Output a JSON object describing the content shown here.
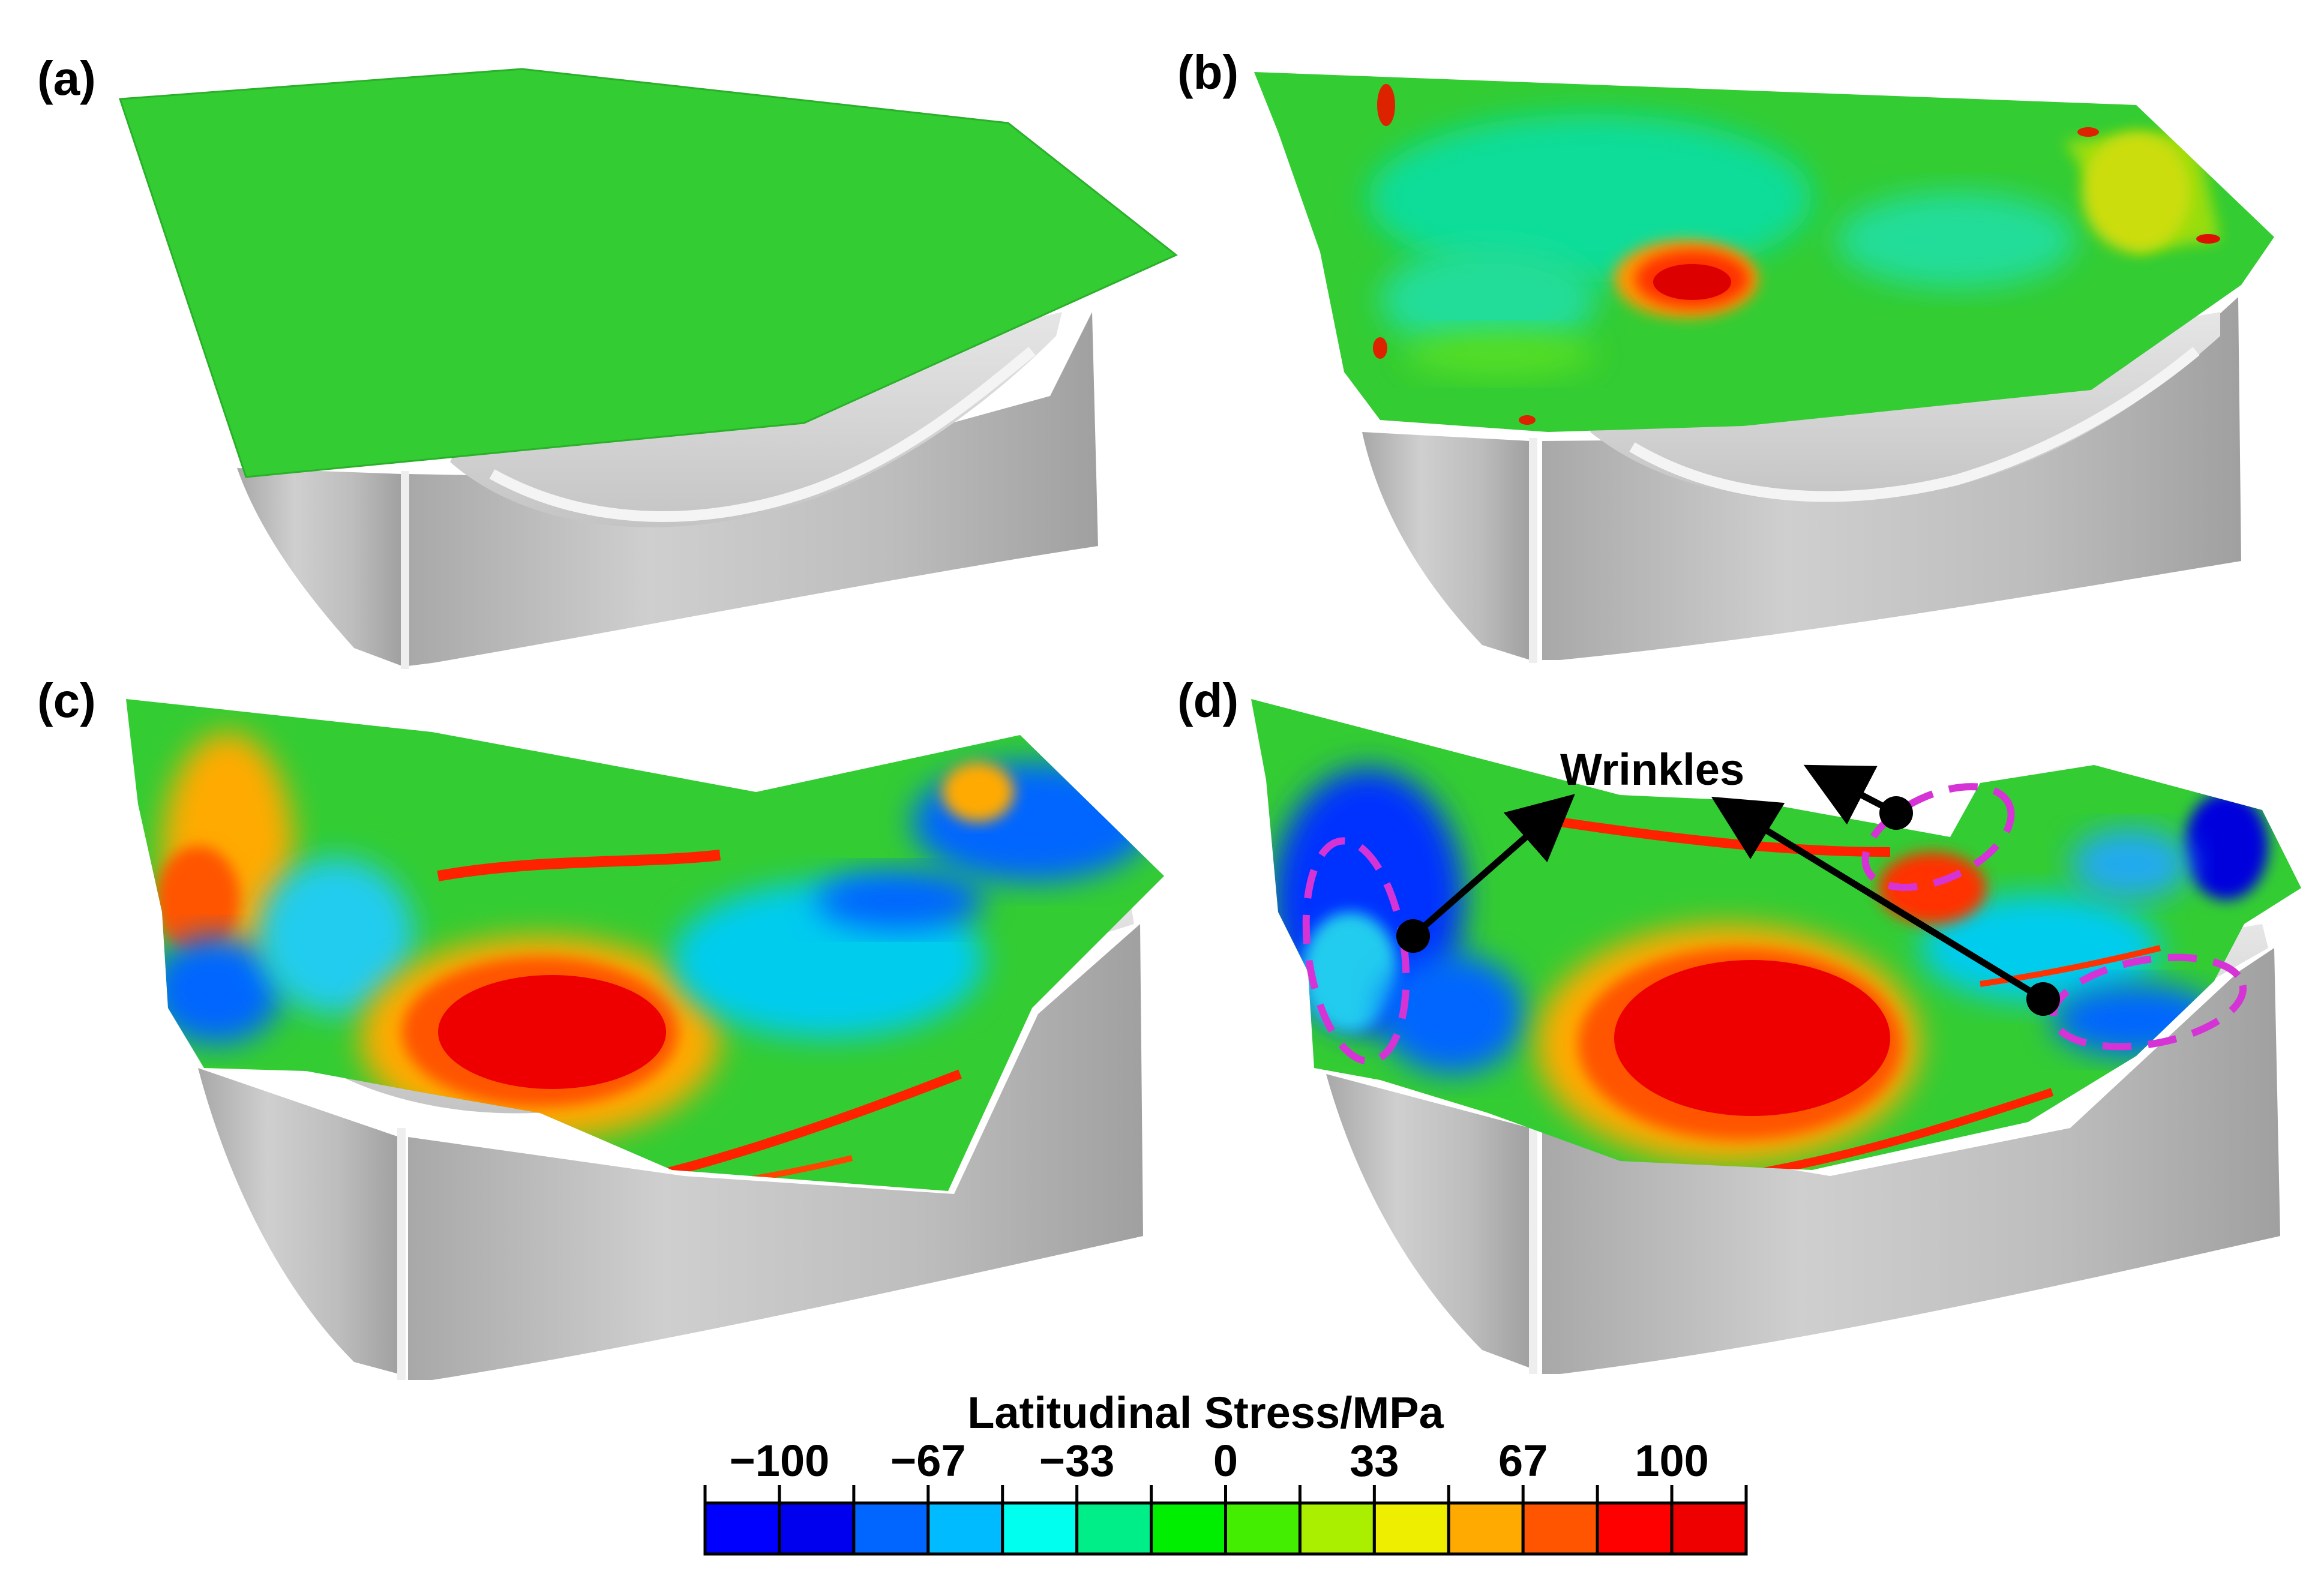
{
  "panels": [
    {
      "label": "(a)"
    },
    {
      "label": "(b)"
    },
    {
      "label": "(c)"
    },
    {
      "label": "(d)"
    }
  ],
  "annotation": {
    "text": "Wrinkles",
    "ellipse_color": "#d633d6",
    "arrow_color": "#000000"
  },
  "colorbar": {
    "title": "Latitudinal Stress/MPa",
    "tick_labels": [
      "−100",
      "−67",
      "−33",
      "0",
      "33",
      "67",
      "100"
    ],
    "colors": [
      "#0000ff",
      "#0000ee",
      "#0066ff",
      "#00bbff",
      "#00ffee",
      "#00ee88",
      "#00ee00",
      "#44ee00",
      "#aaee00",
      "#eeee00",
      "#ffaa00",
      "#ff5500",
      "#ff0000",
      "#ee0000"
    ]
  },
  "colors": {
    "mold_light": "#d8d8d8",
    "mold_mid": "#b5b5b5",
    "mold_dark": "#9a9a9a",
    "sheet_green": "#33cc33"
  }
}
